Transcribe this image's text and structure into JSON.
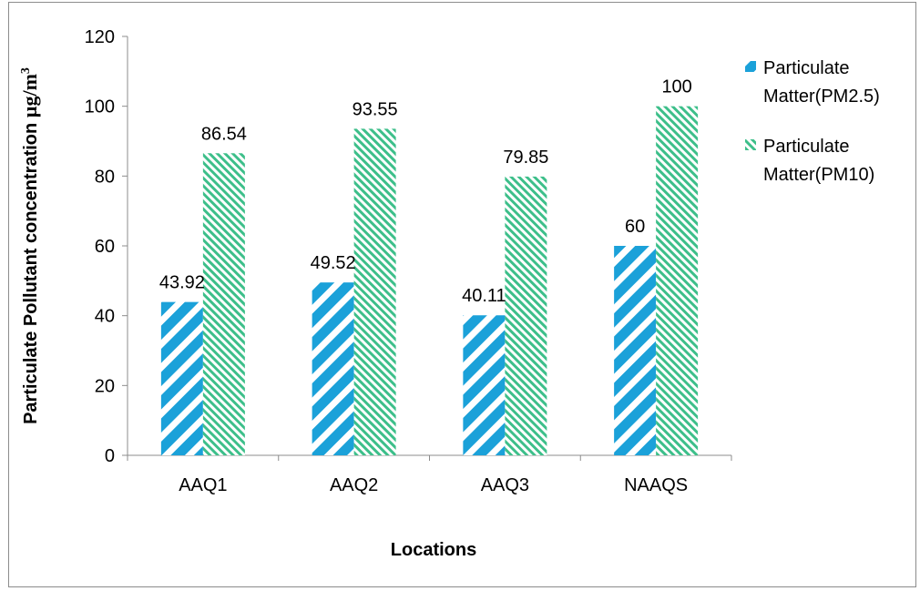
{
  "chart_data": {
    "type": "bar",
    "categories": [
      "AAQ1",
      "AAQ2",
      "AAQ3",
      "NAAQS"
    ],
    "series": [
      {
        "name": "Particulate Matter(PM2.5)",
        "legend_lines": [
          "Particulate",
          "Matter(PM2.5)"
        ],
        "values": [
          43.92,
          49.52,
          40.11,
          60
        ],
        "labels": [
          "43.92",
          "49.52",
          "40.11",
          "60"
        ],
        "color": "#1ba1d9",
        "pattern": "wide-diagonal-stripes"
      },
      {
        "name": "Particulate Matter(PM10)",
        "legend_lines": [
          "Particulate",
          "Matter(PM10)"
        ],
        "values": [
          86.54,
          93.55,
          79.85,
          100
        ],
        "labels": [
          "86.54",
          "93.55",
          "79.85",
          "100"
        ],
        "color": "#3dbf8a",
        "pattern": "narrow-diagonal-stripes"
      }
    ],
    "xlabel": "Locations",
    "ylabel_main": "Particulate Pollutant concentration ",
    "ylabel_unit": "µg/m",
    "ylabel_sup": "3",
    "ylim": [
      0,
      120
    ],
    "yticks": [
      0,
      20,
      40,
      60,
      80,
      100,
      120
    ],
    "grid": false,
    "legend_position": "right"
  }
}
